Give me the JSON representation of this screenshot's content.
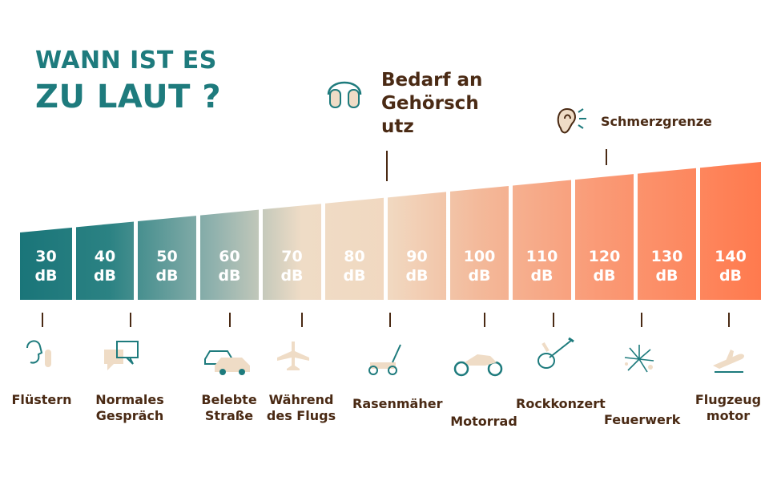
{
  "title": {
    "line1": "WANN IST ES",
    "line2": "ZU LAUT ?"
  },
  "hearing_protection_label": "Bedarf an Gehörsch utz",
  "pain_threshold_label": "Schmerzgrenze",
  "colors": {
    "teal": "#1e7b7d",
    "brown": "#4a2a14",
    "beige": "#efdcc6",
    "orange": "#ff7a4e"
  },
  "levels": [
    {
      "value": "30",
      "unit": "dB",
      "source": "Flüstern",
      "icon": "whisper-icon"
    },
    {
      "value": "40",
      "unit": "dB",
      "source": "Normales Gespräch",
      "icon": "speech-bubbles-icon"
    },
    {
      "value": "50",
      "unit": "dB",
      "source": "",
      "icon": ""
    },
    {
      "value": "60",
      "unit": "dB",
      "source": "Belebte Straße",
      "icon": "cars-icon"
    },
    {
      "value": "70",
      "unit": "dB",
      "source": "Während des Flugs",
      "icon": "airplane-icon"
    },
    {
      "value": "80",
      "unit": "dB",
      "source": "",
      "icon": ""
    },
    {
      "value": "90",
      "unit": "dB",
      "source": "Rasenmäher",
      "icon": "lawnmower-icon"
    },
    {
      "value": "100",
      "unit": "dB",
      "source": "Motorrad",
      "icon": "motorcycle-icon"
    },
    {
      "value": "110",
      "unit": "dB",
      "source": "Rockkonzert",
      "icon": "guitar-icon"
    },
    {
      "value": "120",
      "unit": "dB",
      "source": "Feuerwerk",
      "icon": "fireworks-icon"
    },
    {
      "value": "130",
      "unit": "dB",
      "source": "",
      "icon": ""
    },
    {
      "value": "140",
      "unit": "dB",
      "source": "Flugzeug motor",
      "icon": "plane-takeoff-icon"
    }
  ]
}
